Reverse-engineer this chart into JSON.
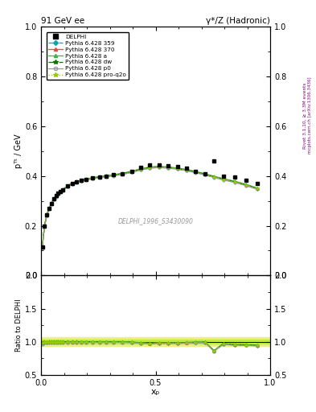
{
  "title_left": "91 GeV ee",
  "title_right": "γ*/Z (Hadronic)",
  "ylabel_main": "pᵀᵗ / GeV",
  "ylabel_ratio": "Ratio to DELPHI",
  "xlabel": "xₚ",
  "watermark": "DELPHI_1996_S3430090",
  "right_label_top": "Rivet 3.1.10, ≥ 3.3M events",
  "right_label_bottom": "mcplots.cern.ch [arXiv:1306.3436]",
  "ylim_main": [
    0.0,
    1.0
  ],
  "ylim_ratio": [
    0.5,
    2.0
  ],
  "xlim": [
    0.0,
    1.0
  ],
  "data_x": [
    0.005,
    0.015,
    0.025,
    0.035,
    0.045,
    0.055,
    0.065,
    0.075,
    0.085,
    0.095,
    0.115,
    0.135,
    0.155,
    0.175,
    0.195,
    0.225,
    0.255,
    0.285,
    0.315,
    0.355,
    0.395,
    0.435,
    0.475,
    0.515,
    0.555,
    0.595,
    0.635,
    0.675,
    0.715,
    0.755,
    0.795,
    0.845,
    0.895,
    0.945
  ],
  "data_y": [
    0.115,
    0.2,
    0.245,
    0.27,
    0.29,
    0.308,
    0.32,
    0.33,
    0.338,
    0.345,
    0.36,
    0.37,
    0.377,
    0.382,
    0.387,
    0.392,
    0.397,
    0.4,
    0.404,
    0.41,
    0.42,
    0.435,
    0.445,
    0.445,
    0.442,
    0.438,
    0.43,
    0.42,
    0.41,
    0.46,
    0.4,
    0.395,
    0.382,
    0.37
  ],
  "mc_x": [
    0.005,
    0.015,
    0.025,
    0.035,
    0.045,
    0.055,
    0.065,
    0.075,
    0.085,
    0.095,
    0.115,
    0.135,
    0.155,
    0.175,
    0.195,
    0.225,
    0.255,
    0.285,
    0.315,
    0.355,
    0.395,
    0.435,
    0.475,
    0.515,
    0.555,
    0.595,
    0.635,
    0.675,
    0.715,
    0.755,
    0.795,
    0.845,
    0.895,
    0.945
  ],
  "mc_359_y": [
    0.112,
    0.198,
    0.242,
    0.268,
    0.288,
    0.306,
    0.318,
    0.328,
    0.336,
    0.343,
    0.358,
    0.368,
    0.375,
    0.38,
    0.385,
    0.39,
    0.395,
    0.398,
    0.402,
    0.408,
    0.415,
    0.425,
    0.432,
    0.435,
    0.432,
    0.428,
    0.422,
    0.414,
    0.405,
    0.395,
    0.385,
    0.375,
    0.362,
    0.348
  ],
  "mc_359_color": "#00AAAA",
  "mc_359_style": "-.",
  "mc_359_marker": "D",
  "mc_359_markersize": 2.0,
  "mc_370_y": [
    0.114,
    0.2,
    0.244,
    0.27,
    0.29,
    0.308,
    0.32,
    0.33,
    0.338,
    0.345,
    0.36,
    0.37,
    0.377,
    0.382,
    0.387,
    0.392,
    0.397,
    0.4,
    0.404,
    0.41,
    0.418,
    0.428,
    0.435,
    0.438,
    0.435,
    0.431,
    0.425,
    0.417,
    0.408,
    0.398,
    0.388,
    0.378,
    0.365,
    0.35
  ],
  "mc_370_color": "#EE4444",
  "mc_370_style": "-",
  "mc_370_marker": "^",
  "mc_370_markersize": 2.5,
  "mc_a_y": [
    0.115,
    0.201,
    0.245,
    0.271,
    0.291,
    0.309,
    0.321,
    0.331,
    0.339,
    0.346,
    0.361,
    0.371,
    0.378,
    0.383,
    0.388,
    0.393,
    0.398,
    0.401,
    0.405,
    0.411,
    0.419,
    0.429,
    0.436,
    0.439,
    0.436,
    0.432,
    0.426,
    0.418,
    0.409,
    0.399,
    0.389,
    0.379,
    0.366,
    0.351
  ],
  "mc_a_color": "#33BB33",
  "mc_a_style": "-",
  "mc_a_marker": "^",
  "mc_a_markersize": 2.5,
  "mc_dw_y": [
    0.113,
    0.199,
    0.243,
    0.269,
    0.289,
    0.307,
    0.319,
    0.329,
    0.337,
    0.344,
    0.359,
    0.369,
    0.376,
    0.381,
    0.386,
    0.391,
    0.396,
    0.399,
    0.403,
    0.409,
    0.417,
    0.427,
    0.434,
    0.437,
    0.434,
    0.43,
    0.424,
    0.416,
    0.407,
    0.397,
    0.387,
    0.377,
    0.364,
    0.349
  ],
  "mc_dw_color": "#007700",
  "mc_dw_style": "-.",
  "mc_dw_marker": "*",
  "mc_dw_markersize": 3.0,
  "mc_p0_y": [
    0.111,
    0.196,
    0.24,
    0.266,
    0.286,
    0.304,
    0.316,
    0.326,
    0.334,
    0.341,
    0.356,
    0.366,
    0.373,
    0.378,
    0.383,
    0.388,
    0.393,
    0.396,
    0.4,
    0.406,
    0.414,
    0.424,
    0.431,
    0.434,
    0.431,
    0.427,
    0.421,
    0.413,
    0.404,
    0.394,
    0.384,
    0.374,
    0.361,
    0.346
  ],
  "mc_p0_color": "#999999",
  "mc_p0_style": "-",
  "mc_p0_marker": "o",
  "mc_p0_markersize": 2.5,
  "mc_proq2o_y": [
    0.113,
    0.199,
    0.243,
    0.269,
    0.289,
    0.307,
    0.319,
    0.329,
    0.337,
    0.344,
    0.359,
    0.369,
    0.376,
    0.381,
    0.386,
    0.391,
    0.396,
    0.399,
    0.403,
    0.409,
    0.417,
    0.427,
    0.434,
    0.437,
    0.434,
    0.43,
    0.424,
    0.416,
    0.407,
    0.397,
    0.387,
    0.377,
    0.364,
    0.349
  ],
  "mc_proq2o_color": "#99CC00",
  "mc_proq2o_style": ":",
  "mc_proq2o_marker": "*",
  "mc_proq2o_markersize": 3.0,
  "band_color_outer": "#EEEE88",
  "band_color_inner": "#BBEE44",
  "legend_entries": [
    {
      "label": "DELPHI",
      "color": "black",
      "marker": "s",
      "linestyle": "none",
      "ms": 4
    },
    {
      "label": "Pythia 6.428 359",
      "color": "#00AAAA",
      "marker": "D",
      "linestyle": "-.",
      "ms": 3
    },
    {
      "label": "Pythia 6.428 370",
      "color": "#EE4444",
      "marker": "^",
      "linestyle": "-",
      "ms": 3
    },
    {
      "label": "Pythia 6.428 a",
      "color": "#33BB33",
      "marker": "^",
      "linestyle": "-",
      "ms": 3
    },
    {
      "label": "Pythia 6.428 dw",
      "color": "#007700",
      "marker": "*",
      "linestyle": "-.",
      "ms": 4
    },
    {
      "label": "Pythia 6.428 p0",
      "color": "#999999",
      "marker": "o",
      "linestyle": "-",
      "ms": 3
    },
    {
      "label": "Pythia 6.428 pro-q2o",
      "color": "#99CC00",
      "marker": "*",
      "linestyle": ":",
      "ms": 4
    }
  ]
}
